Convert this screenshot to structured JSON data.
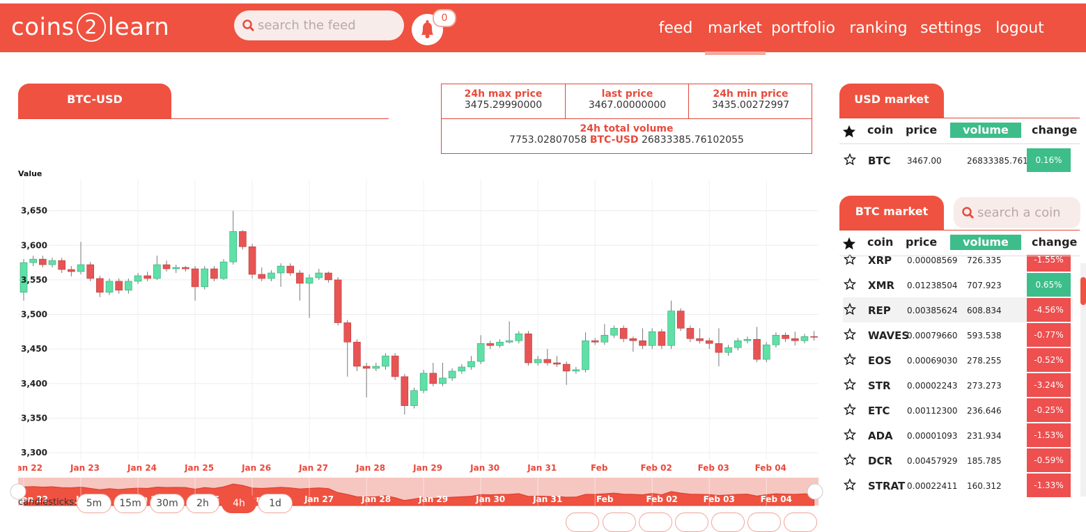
{
  "header": {
    "logo": [
      "coins",
      "2",
      "learn"
    ],
    "search_placeholder": "search the feed",
    "notifications": 0,
    "nav": [
      "feed",
      "market",
      "portfolio",
      "ranking",
      "settings",
      "logout"
    ]
  },
  "ticker": {
    "pair": "BTC-USD",
    "stats": [
      {
        "label": "24h max price",
        "value": "3475.29990000"
      },
      {
        "label": "last price",
        "value": "3467.00000000"
      },
      {
        "label": "24h min price",
        "value": "3435.00272997"
      }
    ],
    "volume_label": "24h total volume",
    "volume_base": "7753.02807058",
    "volume_pair": "BTC-USD",
    "volume_quote": "26833385.76102055"
  },
  "chart_data": {
    "type": "candlestick",
    "y_label": "Value",
    "ylim": [
      3290,
      3695
    ],
    "yticks": [
      {
        "value": 3300,
        "label": "3,300"
      },
      {
        "value": 3350,
        "label": "3,350"
      },
      {
        "value": 3400,
        "label": "3,400"
      },
      {
        "value": 3450,
        "label": "3,450"
      },
      {
        "value": 3500,
        "label": "3,500"
      },
      {
        "value": 3550,
        "label": "3,550"
      },
      {
        "value": 3600,
        "label": "3,600"
      },
      {
        "value": 3650,
        "label": "3,650"
      }
    ],
    "grid": true,
    "up_color": "#5ee0a6",
    "down_color": "#e85454",
    "categories": [
      "Jan 22",
      null,
      null,
      null,
      null,
      null,
      "Jan 23",
      null,
      null,
      null,
      null,
      null,
      "Jan 24",
      null,
      null,
      null,
      null,
      null,
      "Jan 25",
      null,
      null,
      null,
      null,
      null,
      "Jan 26",
      null,
      null,
      null,
      null,
      null,
      "Jan 27",
      null,
      null,
      null,
      null,
      null,
      "Jan 28",
      null,
      null,
      null,
      null,
      null,
      "Jan 29",
      null,
      null,
      null,
      null,
      null,
      "Jan 30",
      null,
      null,
      null,
      null,
      null,
      "Jan 31",
      null,
      null,
      null,
      null,
      null,
      "Feb",
      null,
      null,
      null,
      null,
      null,
      "Feb 02",
      null,
      null,
      null,
      null,
      null,
      "Feb 03",
      null,
      null,
      null,
      null,
      null,
      "Feb 04",
      null,
      null,
      null,
      null,
      null
    ],
    "open": [
      3532,
      3575,
      3580,
      3572,
      3578,
      3565,
      3562,
      3572,
      3552,
      3532,
      3548,
      3535,
      3548,
      3556,
      3552,
      3572,
      3566,
      3568,
      3566,
      3540,
      3566,
      3552,
      3576,
      3620,
      3598,
      3558,
      3552,
      3560,
      3570,
      3560,
      3545,
      3553,
      3560,
      3550,
      3488,
      3460,
      3425,
      3422,
      3425,
      3440,
      3410,
      3368,
      3390,
      3415,
      3400,
      3408,
      3418,
      3424,
      3432,
      3458,
      3455,
      3460,
      3462,
      3472,
      3430,
      3435,
      3430,
      3428,
      3418,
      3420,
      3462,
      3460,
      3470,
      3480,
      3465,
      3462,
      3455,
      3475,
      3455,
      3505,
      3480,
      3465,
      3462,
      3458,
      3445,
      3452,
      3462,
      3464,
      3435,
      3456,
      3470,
      3465,
      3462,
      3468
    ],
    "high": [
      3580,
      3585,
      3585,
      3582,
      3582,
      3570,
      3605,
      3576,
      3556,
      3552,
      3552,
      3552,
      3560,
      3562,
      3585,
      3578,
      3572,
      3570,
      3570,
      3570,
      3570,
      3580,
      3650,
      3622,
      3602,
      3568,
      3564,
      3574,
      3574,
      3564,
      3558,
      3566,
      3562,
      3554,
      3492,
      3464,
      3430,
      3430,
      3444,
      3444,
      3414,
      3394,
      3420,
      3430,
      3430,
      3422,
      3428,
      3440,
      3470,
      3462,
      3464,
      3490,
      3476,
      3476,
      3440,
      3450,
      3440,
      3432,
      3424,
      3474,
      3466,
      3486,
      3484,
      3484,
      3468,
      3480,
      3480,
      3479,
      3520,
      3509,
      3484,
      3480,
      3466,
      3480,
      3456,
      3466,
      3468,
      3482,
      3460,
      3474,
      3474,
      3475,
      3472,
      3476
    ],
    "low": [
      3520,
      3570,
      3568,
      3568,
      3560,
      3555,
      3558,
      3548,
      3525,
      3528,
      3530,
      3530,
      3544,
      3548,
      3550,
      3562,
      3560,
      3562,
      3520,
      3536,
      3548,
      3550,
      3572,
      3594,
      3552,
      3548,
      3548,
      3540,
      3556,
      3520,
      3495,
      3550,
      3546,
      3484,
      3410,
      3418,
      3380,
      3418,
      3420,
      3405,
      3355,
      3364,
      3386,
      3396,
      3396,
      3404,
      3414,
      3420,
      3428,
      3450,
      3452,
      3458,
      3458,
      3426,
      3426,
      3426,
      3424,
      3398,
      3414,
      3416,
      3456,
      3456,
      3466,
      3460,
      3446,
      3450,
      3450,
      3450,
      3450,
      3476,
      3460,
      3458,
      3450,
      3425,
      3440,
      3448,
      3458,
      3431,
      3431,
      3452,
      3460,
      3455,
      3458,
      3462
    ],
    "close": [
      3575,
      3580,
      3572,
      3578,
      3565,
      3562,
      3572,
      3552,
      3532,
      3548,
      3535,
      3548,
      3556,
      3552,
      3572,
      3566,
      3568,
      3566,
      3540,
      3566,
      3552,
      3576,
      3620,
      3598,
      3558,
      3552,
      3560,
      3570,
      3560,
      3545,
      3553,
      3560,
      3550,
      3488,
      3460,
      3425,
      3422,
      3425,
      3440,
      3410,
      3368,
      3390,
      3415,
      3400,
      3408,
      3418,
      3424,
      3432,
      3458,
      3455,
      3460,
      3462,
      3472,
      3430,
      3435,
      3430,
      3428,
      3418,
      3420,
      3462,
      3460,
      3470,
      3480,
      3465,
      3462,
      3455,
      3475,
      3455,
      3505,
      3480,
      3465,
      3462,
      3458,
      3445,
      3452,
      3462,
      3464,
      3435,
      3456,
      3470,
      3465,
      3462,
      3468,
      3467
    ]
  },
  "candle_buttons": {
    "label": "candlesticks:",
    "options": [
      "5m",
      "15m",
      "30m",
      "2h",
      "4h",
      "1d"
    ],
    "active": 4
  },
  "usd_market": {
    "tab": "USD market",
    "columns": [
      "coin",
      "price",
      "volume",
      "change"
    ],
    "rows": [
      [
        "BTC",
        "3467.00",
        "26833385.761",
        "0.16%"
      ]
    ]
  },
  "btc_market": {
    "tab": "BTC market",
    "search_placeholder": "search a coin",
    "columns": [
      "coin",
      "price",
      "volume",
      "change"
    ],
    "rows": [
      [
        "XRP",
        "0.00008569",
        "726.335",
        "-1.55%"
      ],
      [
        "XMR",
        "0.01238504",
        "707.923",
        "0.65%"
      ],
      [
        "REP",
        "0.00385624",
        "608.834",
        "-4.56%"
      ],
      [
        "WAVES",
        "0.00079660",
        "593.538",
        "-0.77%"
      ],
      [
        "EOS",
        "0.00069030",
        "278.255",
        "-0.52%"
      ],
      [
        "STR",
        "0.00002243",
        "273.273",
        "-3.24%"
      ],
      [
        "ETC",
        "0.00112300",
        "236.646",
        "-0.25%"
      ],
      [
        "ADA",
        "0.00001093",
        "231.934",
        "-1.53%"
      ],
      [
        "DCR",
        "0.00457929",
        "185.785",
        "-0.59%"
      ],
      [
        "STRAT",
        "0.00022411",
        "160.312",
        "-1.33%"
      ]
    ]
  }
}
